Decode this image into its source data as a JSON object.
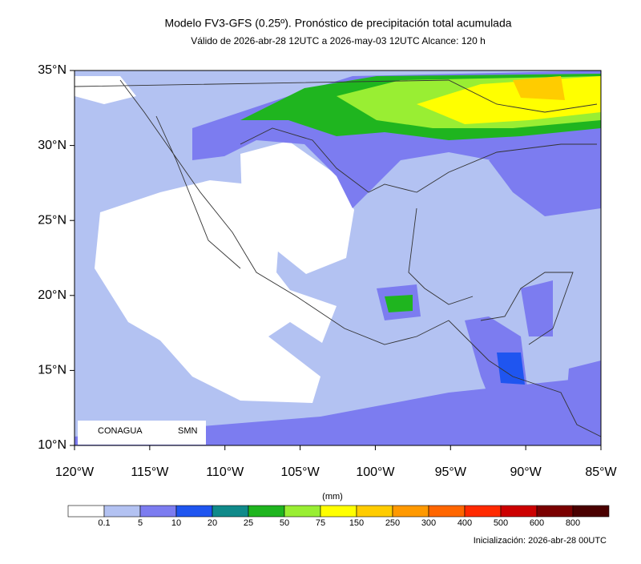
{
  "header": {
    "title": "Modelo FV3-GFS (0.25º). Pronóstico de precipitación total acumulada",
    "subtitle": "Válido de 2026-abr-28 12UTC a 2026-may-03 12UTC    Alcance: 120 h"
  },
  "map": {
    "lat_ticks": [
      "35°N",
      "30°N",
      "25°N",
      "20°N",
      "15°N",
      "10°N"
    ],
    "lon_ticks": [
      "120°W",
      "115°W",
      "110°W",
      "105°W",
      "100°W",
      "95°W",
      "90°W",
      "85°W"
    ],
    "logos": [
      "CONAGUA",
      "SMN"
    ]
  },
  "legend": {
    "unit": "(mm)",
    "colors": [
      "#ffffff",
      "#b3c2f2",
      "#7c7cf0",
      "#1f55f0",
      "#108a8a",
      "#1fb51f",
      "#99ee33",
      "#ffff00",
      "#ffcc00",
      "#ff9900",
      "#ff6600",
      "#ff2a00",
      "#cc0000",
      "#7a0000",
      "#4a0000"
    ],
    "labels": [
      "0.1",
      "5",
      "10",
      "20",
      "25",
      "50",
      "75",
      "150",
      "250",
      "300",
      "400",
      "500",
      "600",
      "800"
    ]
  },
  "footer": {
    "init": "Inicialización: 2026-abr-28 00UTC"
  }
}
